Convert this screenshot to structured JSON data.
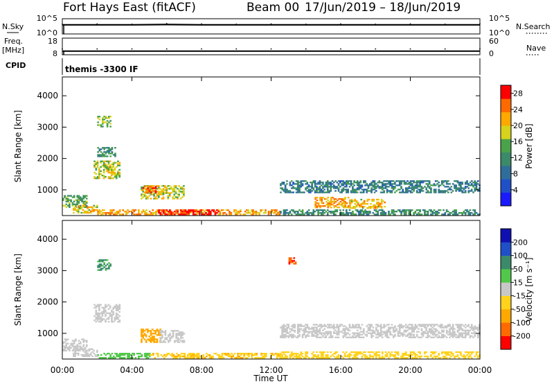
{
  "header": {
    "station": "Fort Hays East (fitACF)",
    "beam": "Beam 00",
    "date_range": "17/Jun/2019 – 18/Jun/2019"
  },
  "left_labels": {
    "nsky": "N.Sky",
    "freq": "Freq.",
    "freq_unit": "[MHz]",
    "cpid": "CPID"
  },
  "right_labels": {
    "nsearch": "N.Search",
    "nave": "Nave"
  },
  "cpid_text": "themis -3300 IF",
  "xaxis": {
    "title": "Time UT"
  },
  "power_panel": {
    "ylabel": "Slant Range [km]",
    "cbar_label": "Power [dB]"
  },
  "velocity_panel": {
    "ylabel": "Slant Range [km]",
    "cbar_label": "Velocity [m s⁻¹]"
  },
  "colors": {
    "power": [
      "#1a1aff",
      "#2050c8",
      "#2f6e9a",
      "#3b8a6a",
      "#4aa24a",
      "#d7d21c",
      "#ffa800",
      "#ff6a00",
      "#ff0000"
    ],
    "velocity": [
      "#ff0000",
      "#ff6a00",
      "#ffa800",
      "#ffd21c",
      "#c8c8c8",
      "#52c84a",
      "#3b8a6a",
      "#2050c8",
      "#1010b0"
    ]
  },
  "chart_data": [
    {
      "type": "line",
      "name": "noise-strip",
      "left_ticks": [
        "10^5",
        "10^0"
      ],
      "right_ticks": [
        "10^5",
        "10^0"
      ],
      "series": [
        {
          "name": "N.Sky",
          "values": [
            3.0,
            3.0,
            3.0,
            3.1,
            3.0,
            3.0,
            3.0,
            3.0,
            3.0,
            3.0,
            3.0,
            3.0,
            3.0
          ]
        },
        {
          "name": "N.Search",
          "values": [
            3.2,
            3.3,
            3.2,
            3.4,
            3.3,
            3.2,
            3.3,
            3.2,
            3.3,
            3.2,
            3.3,
            3.2,
            3.3
          ]
        }
      ]
    },
    {
      "type": "line",
      "name": "freq-strip",
      "left_ticks": [
        "18",
        "8"
      ],
      "right_ticks": [
        "60",
        "0"
      ],
      "series": [
        {
          "name": "Freq.",
          "values": [
            10.2,
            10.2,
            10.2,
            10.2,
            10.2,
            10.2,
            10.2,
            10.2,
            10.2,
            10.2,
            10.2,
            10.2,
            10.2
          ]
        },
        {
          "name": "Nave",
          "values": [
            21,
            21,
            21,
            21,
            21,
            21,
            21,
            21,
            21,
            21,
            21,
            21,
            21
          ]
        }
      ]
    },
    {
      "type": "heatmap",
      "name": "power",
      "x_ticks": [
        "00:00",
        "04:00",
        "08:00",
        "12:00",
        "16:00",
        "20:00",
        "00:00"
      ],
      "xlim": [
        0,
        24
      ],
      "y_ticks": [
        1000,
        2000,
        3000,
        4000
      ],
      "ylim": [
        180,
        4600
      ],
      "colorbar_ticks": [
        4,
        8,
        12,
        16,
        20,
        24,
        28
      ],
      "colorbar_range": [
        0,
        30
      ],
      "echo_regions": [
        {
          "t0": 0.0,
          "t1": 1.4,
          "r0": 430,
          "r1": 820,
          "value": 14
        },
        {
          "t0": 0.6,
          "t1": 2.0,
          "r0": 250,
          "r1": 500,
          "value": 20
        },
        {
          "t0": 1.8,
          "t1": 3.3,
          "r0": 1350,
          "r1": 1900,
          "value": 18
        },
        {
          "t0": 2.0,
          "t1": 3.0,
          "r0": 2050,
          "r1": 2350,
          "value": 12
        },
        {
          "t0": 2.0,
          "t1": 2.8,
          "r0": 3000,
          "r1": 3350,
          "value": 16
        },
        {
          "t0": 4.5,
          "t1": 7.0,
          "r0": 700,
          "r1": 1150,
          "value": 18
        },
        {
          "t0": 4.6,
          "t1": 5.4,
          "r0": 900,
          "r1": 1100,
          "value": 26
        },
        {
          "t0": 2.0,
          "t1": 12.5,
          "r0": 200,
          "r1": 380,
          "value": 22
        },
        {
          "t0": 5.5,
          "t1": 9.0,
          "r0": 200,
          "r1": 340,
          "value": 29
        },
        {
          "t0": 12.5,
          "t1": 24.0,
          "r0": 900,
          "r1": 1300,
          "value": 10
        },
        {
          "t0": 14.5,
          "t1": 16.5,
          "r0": 420,
          "r1": 760,
          "value": 22
        },
        {
          "t0": 16.5,
          "t1": 18.5,
          "r0": 400,
          "r1": 700,
          "value": 20
        },
        {
          "t0": 12.5,
          "t1": 24.0,
          "r0": 200,
          "r1": 380,
          "value": 12
        }
      ]
    },
    {
      "type": "heatmap",
      "name": "velocity",
      "x_ticks": [
        "00:00",
        "04:00",
        "08:00",
        "12:00",
        "16:00",
        "20:00",
        "00:00"
      ],
      "xlim": [
        0,
        24
      ],
      "y_ticks": [
        1000,
        2000,
        3000,
        4000
      ],
      "ylim": [
        180,
        4600
      ],
      "colorbar_ticks": [
        200,
        100,
        50,
        15,
        -15,
        -50,
        -100,
        -200
      ],
      "echo_regions": [
        {
          "t0": 0.0,
          "t1": 1.4,
          "r0": 430,
          "r1": 820,
          "value": 0
        },
        {
          "t0": 0.6,
          "t1": 2.0,
          "r0": 250,
          "r1": 500,
          "value": 0
        },
        {
          "t0": 1.8,
          "t1": 3.3,
          "r0": 1350,
          "r1": 1900,
          "value": 0
        },
        {
          "t0": 2.0,
          "t1": 2.8,
          "r0": 3000,
          "r1": 3350,
          "value": 60
        },
        {
          "t0": 4.5,
          "t1": 5.6,
          "r0": 700,
          "r1": 1150,
          "value": -80
        },
        {
          "t0": 5.6,
          "t1": 7.0,
          "r0": 700,
          "r1": 1100,
          "value": 0
        },
        {
          "t0": 2.0,
          "t1": 5.0,
          "r0": 200,
          "r1": 380,
          "value": 30
        },
        {
          "t0": 5.0,
          "t1": 12.5,
          "r0": 200,
          "r1": 380,
          "value": -40
        },
        {
          "t0": 12.5,
          "t1": 24.0,
          "r0": 850,
          "r1": 1300,
          "value": 0
        },
        {
          "t0": 12.5,
          "t1": 24.0,
          "r0": 200,
          "r1": 420,
          "value": -30
        },
        {
          "t0": 13.0,
          "t1": 13.4,
          "r0": 3200,
          "r1": 3400,
          "value": -200
        }
      ]
    }
  ]
}
